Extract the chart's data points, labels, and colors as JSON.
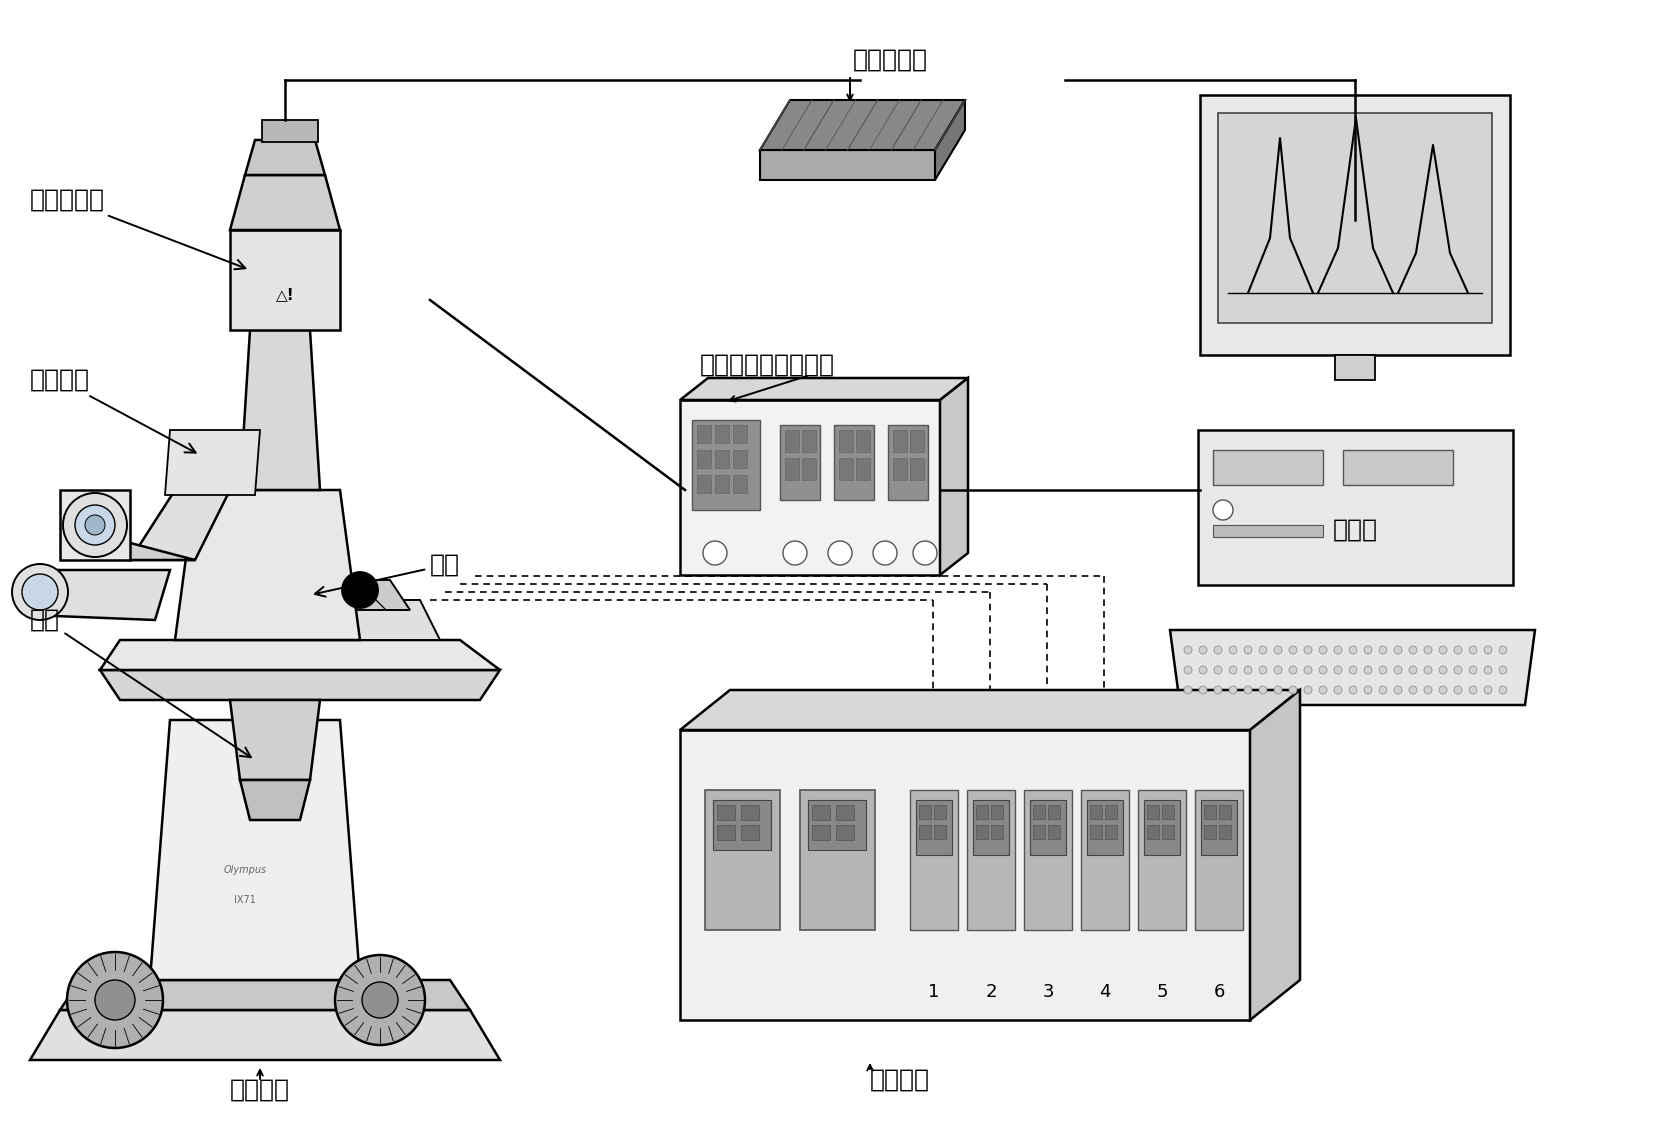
{
  "bg_color": "#ffffff",
  "labels": {
    "guang_dian_bei_zeng_guan": "光电倍增管",
    "ju_jiao_tou_jing": "聚焦透镜",
    "wu_jing": "物镜",
    "xin_pian": "芯片",
    "er_wei_ping_tai": "二维平台",
    "shu_ju_cai_ji_qi": "数据采集器",
    "guang_dian_bei_zeng_guan_dian_yuan": "光电倍增管稳压电源",
    "ji_suan_ji": "计算机",
    "gao_ya_dian_yuan": "高压电源"
  },
  "figsize": [
    16.56,
    11.24
  ],
  "dpi": 100
}
